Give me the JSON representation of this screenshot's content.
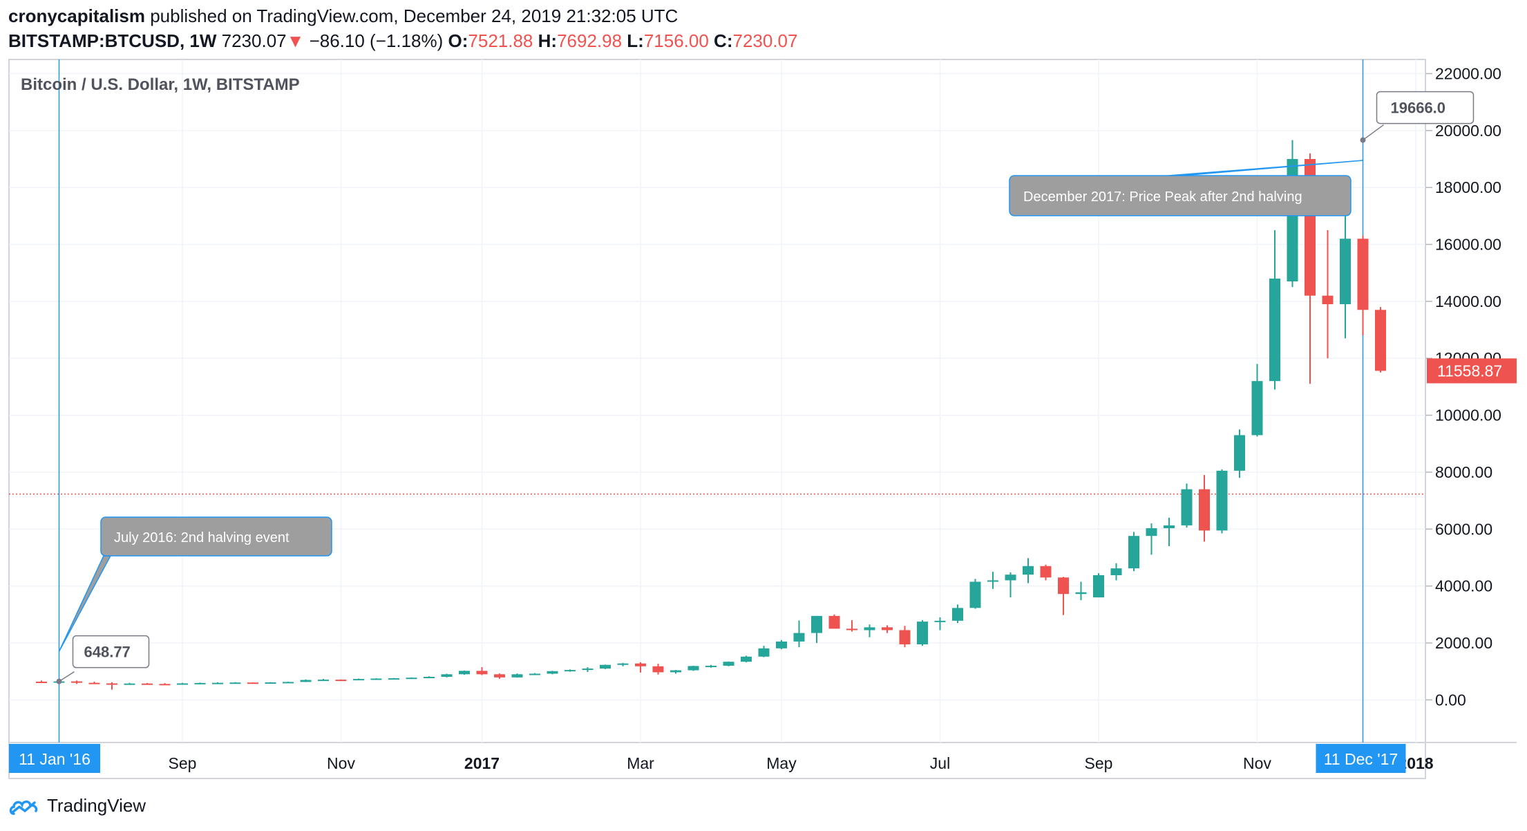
{
  "header": {
    "author": "cronycapitalism",
    "published_text": "published on TradingView.com, December 24, 2019 21:32:05 UTC",
    "symbol": "BITSTAMP:BTCUSD, 1W",
    "last": "7230.07",
    "change_arrow": "▼",
    "change": "−86.10 (−1.18%)",
    "o_label": "O:",
    "o_value": "7521.88",
    "h_label": "H:",
    "h_value": "7692.98",
    "l_label": "L:",
    "l_value": "7156.00",
    "c_label": "C:",
    "c_value": "7230.07"
  },
  "footer": {
    "brand": "TradingView"
  },
  "colors": {
    "up": "#26a69a",
    "down": "#ef5350",
    "accent": "#2196f3",
    "callout": "#9e9e9e"
  },
  "chart_data": {
    "type": "candlestick",
    "title": "Bitcoin / U.S. Dollar, 1W, BITSTAMP",
    "xlabel": "",
    "ylabel": "",
    "ylim": [
      -1400,
      22400
    ],
    "y_ticks": [
      "22000.00",
      "20000.00",
      "18000.00",
      "16000.00",
      "14000.00",
      "12000.00",
      "10000.00",
      "8000.00",
      "6000.00",
      "4000.00",
      "2000.00",
      "0.00"
    ],
    "y_tick_values": [
      22000,
      20000,
      18000,
      16000,
      14000,
      12000,
      10000,
      8000,
      6000,
      4000,
      2000,
      0
    ],
    "x_ticks": [
      {
        "label": "Sep",
        "index": 8,
        "bold": false
      },
      {
        "label": "Nov",
        "index": 17,
        "bold": false
      },
      {
        "label": "2017",
        "index": 25,
        "bold": true
      },
      {
        "label": "Mar",
        "index": 34,
        "bold": false
      },
      {
        "label": "May",
        "index": 42,
        "bold": false
      },
      {
        "label": "Jul",
        "index": 51,
        "bold": false
      },
      {
        "label": "Sep",
        "index": 60,
        "bold": false
      },
      {
        "label": "Nov",
        "index": 69,
        "bold": false
      },
      {
        "label": "2018",
        "index": 78,
        "bold": true
      }
    ],
    "current_price_line": 7230.07,
    "last_price_label": "11558.87",
    "last_price_value": 11558.87,
    "crosshair": [
      {
        "label": "11 Jan '16",
        "index": 1
      },
      {
        "label": "11 Dec '17",
        "index": 75
      }
    ],
    "price_labels": [
      {
        "text": "648.77",
        "index": 1,
        "value": 648.77
      },
      {
        "text": "19666.0",
        "index": 75,
        "value": 19666
      }
    ],
    "annotations": [
      {
        "text": "July 2016: 2nd halving event",
        "index": 1,
        "value": 1700
      },
      {
        "text": "December 2017: Price Peak after 2nd halving",
        "index": 75,
        "value": 18950
      }
    ],
    "candles": [
      {
        "o": 640,
        "h": 680,
        "l": 610,
        "c": 620
      },
      {
        "o": 620,
        "h": 700,
        "l": 590,
        "c": 650
      },
      {
        "o": 650,
        "h": 680,
        "l": 560,
        "c": 600
      },
      {
        "o": 600,
        "h": 640,
        "l": 560,
        "c": 580
      },
      {
        "o": 580,
        "h": 620,
        "l": 360,
        "c": 560
      },
      {
        "o": 560,
        "h": 600,
        "l": 530,
        "c": 575
      },
      {
        "o": 575,
        "h": 595,
        "l": 540,
        "c": 560
      },
      {
        "o": 560,
        "h": 590,
        "l": 520,
        "c": 550
      },
      {
        "o": 550,
        "h": 600,
        "l": 540,
        "c": 580
      },
      {
        "o": 580,
        "h": 610,
        "l": 560,
        "c": 595
      },
      {
        "o": 595,
        "h": 620,
        "l": 580,
        "c": 600
      },
      {
        "o": 600,
        "h": 625,
        "l": 590,
        "c": 610
      },
      {
        "o": 610,
        "h": 615,
        "l": 590,
        "c": 605
      },
      {
        "o": 605,
        "h": 625,
        "l": 595,
        "c": 615
      },
      {
        "o": 615,
        "h": 640,
        "l": 605,
        "c": 630
      },
      {
        "o": 630,
        "h": 720,
        "l": 625,
        "c": 700
      },
      {
        "o": 700,
        "h": 740,
        "l": 680,
        "c": 710
      },
      {
        "o": 710,
        "h": 720,
        "l": 690,
        "c": 700
      },
      {
        "o": 700,
        "h": 750,
        "l": 695,
        "c": 735
      },
      {
        "o": 735,
        "h": 760,
        "l": 720,
        "c": 750
      },
      {
        "o": 750,
        "h": 770,
        "l": 730,
        "c": 760
      },
      {
        "o": 760,
        "h": 790,
        "l": 750,
        "c": 780
      },
      {
        "o": 780,
        "h": 830,
        "l": 770,
        "c": 810
      },
      {
        "o": 810,
        "h": 920,
        "l": 790,
        "c": 900
      },
      {
        "o": 900,
        "h": 1030,
        "l": 880,
        "c": 1020
      },
      {
        "o": 1020,
        "h": 1150,
        "l": 870,
        "c": 900
      },
      {
        "o": 900,
        "h": 930,
        "l": 740,
        "c": 790
      },
      {
        "o": 790,
        "h": 930,
        "l": 780,
        "c": 900
      },
      {
        "o": 900,
        "h": 940,
        "l": 870,
        "c": 920
      },
      {
        "o": 920,
        "h": 1020,
        "l": 900,
        "c": 1010
      },
      {
        "o": 1010,
        "h": 1070,
        "l": 990,
        "c": 1050
      },
      {
        "o": 1050,
        "h": 1150,
        "l": 980,
        "c": 1100
      },
      {
        "o": 1100,
        "h": 1240,
        "l": 1080,
        "c": 1230
      },
      {
        "o": 1230,
        "h": 1300,
        "l": 1180,
        "c": 1280
      },
      {
        "o": 1280,
        "h": 1320,
        "l": 960,
        "c": 1180
      },
      {
        "o": 1180,
        "h": 1270,
        "l": 890,
        "c": 970
      },
      {
        "o": 970,
        "h": 1050,
        "l": 920,
        "c": 1040
      },
      {
        "o": 1040,
        "h": 1200,
        "l": 1020,
        "c": 1190
      },
      {
        "o": 1190,
        "h": 1230,
        "l": 1130,
        "c": 1200
      },
      {
        "o": 1200,
        "h": 1350,
        "l": 1180,
        "c": 1340
      },
      {
        "o": 1340,
        "h": 1550,
        "l": 1320,
        "c": 1520
      },
      {
        "o": 1520,
        "h": 1900,
        "l": 1500,
        "c": 1810
      },
      {
        "o": 1810,
        "h": 2100,
        "l": 1780,
        "c": 2050
      },
      {
        "o": 2050,
        "h": 2790,
        "l": 1850,
        "c": 2350
      },
      {
        "o": 2350,
        "h": 2950,
        "l": 2000,
        "c": 2950
      },
      {
        "o": 2950,
        "h": 3000,
        "l": 2500,
        "c": 2500
      },
      {
        "o": 2500,
        "h": 2800,
        "l": 2400,
        "c": 2450
      },
      {
        "o": 2450,
        "h": 2650,
        "l": 2200,
        "c": 2550
      },
      {
        "o": 2550,
        "h": 2620,
        "l": 2350,
        "c": 2450
      },
      {
        "o": 2450,
        "h": 2600,
        "l": 1850,
        "c": 1950
      },
      {
        "o": 1950,
        "h": 2800,
        "l": 1900,
        "c": 2750
      },
      {
        "o": 2750,
        "h": 2900,
        "l": 2450,
        "c": 2780
      },
      {
        "o": 2780,
        "h": 3350,
        "l": 2700,
        "c": 3230
      },
      {
        "o": 3230,
        "h": 4250,
        "l": 3200,
        "c": 4150
      },
      {
        "o": 4150,
        "h": 4500,
        "l": 3900,
        "c": 4200
      },
      {
        "o": 4200,
        "h": 4480,
        "l": 3600,
        "c": 4400
      },
      {
        "o": 4400,
        "h": 4980,
        "l": 4100,
        "c": 4700
      },
      {
        "o": 4700,
        "h": 4750,
        "l": 4200,
        "c": 4300
      },
      {
        "o": 4300,
        "h": 4320,
        "l": 2980,
        "c": 3720
      },
      {
        "o": 3720,
        "h": 4150,
        "l": 3500,
        "c": 3780
      },
      {
        "o": 3600,
        "h": 4450,
        "l": 3600,
        "c": 4380
      },
      {
        "o": 4380,
        "h": 4800,
        "l": 4200,
        "c": 4620
      },
      {
        "o": 4620,
        "h": 5900,
        "l": 4520,
        "c": 5760
      },
      {
        "o": 5760,
        "h": 6200,
        "l": 5100,
        "c": 6030
      },
      {
        "o": 6030,
        "h": 6400,
        "l": 5400,
        "c": 6130
      },
      {
        "o": 6130,
        "h": 7600,
        "l": 6050,
        "c": 7400
      },
      {
        "o": 7400,
        "h": 7900,
        "l": 5560,
        "c": 5950
      },
      {
        "o": 5950,
        "h": 8100,
        "l": 5850,
        "c": 8050
      },
      {
        "o": 8050,
        "h": 9500,
        "l": 7800,
        "c": 9300
      },
      {
        "o": 9300,
        "h": 11800,
        "l": 9250,
        "c": 11200
      },
      {
        "o": 11200,
        "h": 16500,
        "l": 10900,
        "c": 14800
      },
      {
        "o": 14700,
        "h": 19666,
        "l": 14500,
        "c": 19000
      },
      {
        "o": 19000,
        "h": 19200,
        "l": 11100,
        "c": 14200
      },
      {
        "o": 14200,
        "h": 16500,
        "l": 12000,
        "c": 13900
      },
      {
        "o": 13900,
        "h": 17250,
        "l": 12700,
        "c": 16200
      },
      {
        "o": 16200,
        "h": 16300,
        "l": 12800,
        "c": 13700
      },
      {
        "o": 13700,
        "h": 13800,
        "l": 11500,
        "c": 11558.87
      }
    ]
  }
}
